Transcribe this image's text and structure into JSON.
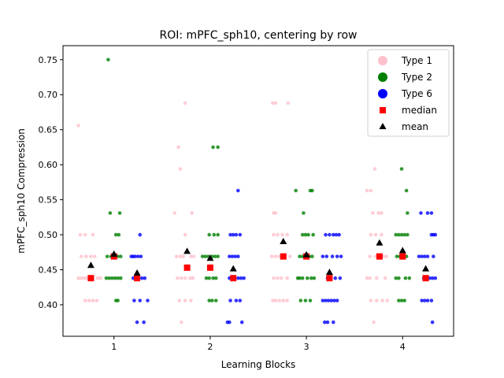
{
  "chart_data": {
    "type": "scatter",
    "title": "ROI: mPFC_sph10, centering by row",
    "xlabel": "Learning Blocks",
    "ylabel": "mPFC_sph10 Compression",
    "xlim": [
      0.47,
      4.53
    ],
    "ylim": [
      0.355,
      0.77
    ],
    "x_ticks": [
      1,
      2,
      3,
      4
    ],
    "x_tick_labels": [
      "1",
      "2",
      "3",
      "4"
    ],
    "y_ticks": [
      0.4,
      0.45,
      0.5,
      0.55,
      0.6,
      0.65,
      0.7,
      0.75
    ],
    "y_tick_labels": [
      "0.40",
      "0.45",
      "0.50",
      "0.55",
      "0.60",
      "0.65",
      "0.70",
      "0.75"
    ],
    "grid": false,
    "legend_position": "top-right",
    "legend": [
      {
        "label": "Type 1",
        "color": "#ffc0cb",
        "marker": "circle"
      },
      {
        "label": "Type 2",
        "color": "#008000",
        "marker": "circle"
      },
      {
        "label": "Type 6",
        "color": "#0000ff",
        "marker": "circle"
      },
      {
        "label": "median",
        "color": "#ff0000",
        "marker": "square"
      },
      {
        "label": "mean",
        "color": "#000000",
        "marker": "triangle"
      }
    ],
    "series": [
      {
        "name": "Type 1",
        "color": "#ffc0cb",
        "points": [
          [
            0.63,
            0.656
          ],
          [
            0.65,
            0.5
          ],
          [
            0.7,
            0.5
          ],
          [
            0.78,
            0.5
          ],
          [
            0.66,
            0.469
          ],
          [
            0.71,
            0.469
          ],
          [
            0.76,
            0.469
          ],
          [
            0.8,
            0.469
          ],
          [
            0.63,
            0.438
          ],
          [
            0.66,
            0.438
          ],
          [
            0.69,
            0.438
          ],
          [
            0.72,
            0.438
          ],
          [
            0.83,
            0.438
          ],
          [
            0.86,
            0.438
          ],
          [
            0.7,
            0.406
          ],
          [
            0.74,
            0.406
          ],
          [
            0.78,
            0.406
          ],
          [
            0.82,
            0.406
          ],
          [
            1.67,
            0.625
          ],
          [
            1.69,
            0.594
          ],
          [
            1.74,
            0.688
          ],
          [
            1.63,
            0.531
          ],
          [
            1.81,
            0.531
          ],
          [
            1.74,
            0.5
          ],
          [
            1.65,
            0.469
          ],
          [
            1.69,
            0.469
          ],
          [
            1.72,
            0.469
          ],
          [
            1.8,
            0.469
          ],
          [
            1.83,
            0.469
          ],
          [
            1.66,
            0.438
          ],
          [
            1.7,
            0.438
          ],
          [
            1.74,
            0.438
          ],
          [
            1.79,
            0.438
          ],
          [
            1.82,
            0.438
          ],
          [
            1.68,
            0.406
          ],
          [
            1.74,
            0.406
          ],
          [
            1.8,
            0.406
          ],
          [
            1.7,
            0.375
          ],
          [
            2.65,
            0.688
          ],
          [
            2.68,
            0.688
          ],
          [
            2.81,
            0.688
          ],
          [
            2.66,
            0.531
          ],
          [
            2.68,
            0.531
          ],
          [
            2.66,
            0.5
          ],
          [
            2.7,
            0.5
          ],
          [
            2.75,
            0.5
          ],
          [
            2.8,
            0.5
          ],
          [
            2.64,
            0.469
          ],
          [
            2.68,
            0.469
          ],
          [
            2.72,
            0.469
          ],
          [
            2.77,
            0.469
          ],
          [
            2.83,
            0.469
          ],
          [
            2.66,
            0.438
          ],
          [
            2.7,
            0.438
          ],
          [
            2.74,
            0.438
          ],
          [
            2.8,
            0.438
          ],
          [
            2.65,
            0.406
          ],
          [
            2.68,
            0.406
          ],
          [
            2.72,
            0.406
          ],
          [
            2.76,
            0.406
          ],
          [
            2.8,
            0.406
          ],
          [
            3.71,
            0.594
          ],
          [
            3.63,
            0.563
          ],
          [
            3.67,
            0.563
          ],
          [
            3.69,
            0.531
          ],
          [
            3.75,
            0.531
          ],
          [
            3.78,
            0.531
          ],
          [
            3.67,
            0.5
          ],
          [
            3.72,
            0.5
          ],
          [
            3.78,
            0.5
          ],
          [
            3.66,
            0.469
          ],
          [
            3.72,
            0.469
          ],
          [
            3.77,
            0.469
          ],
          [
            3.8,
            0.469
          ],
          [
            3.83,
            0.469
          ],
          [
            3.63,
            0.438
          ],
          [
            3.66,
            0.438
          ],
          [
            3.73,
            0.438
          ],
          [
            3.82,
            0.438
          ],
          [
            3.67,
            0.406
          ],
          [
            3.73,
            0.406
          ],
          [
            3.79,
            0.406
          ],
          [
            3.84,
            0.406
          ],
          [
            3.7,
            0.375
          ]
        ]
      },
      {
        "name": "Type 2",
        "color": "#008000",
        "points": [
          [
            0.94,
            0.75
          ],
          [
            0.96,
            0.531
          ],
          [
            1.06,
            0.531
          ],
          [
            1.02,
            0.5
          ],
          [
            1.05,
            0.5
          ],
          [
            0.93,
            0.469
          ],
          [
            0.97,
            0.469
          ],
          [
            1.01,
            0.469
          ],
          [
            1.04,
            0.469
          ],
          [
            1.07,
            0.469
          ],
          [
            0.92,
            0.438
          ],
          [
            0.95,
            0.438
          ],
          [
            0.98,
            0.438
          ],
          [
            1.01,
            0.438
          ],
          [
            1.04,
            0.438
          ],
          [
            1.07,
            0.438
          ],
          [
            1.02,
            0.406
          ],
          [
            1.04,
            0.406
          ],
          [
            2.03,
            0.625
          ],
          [
            2.08,
            0.625
          ],
          [
            1.99,
            0.5
          ],
          [
            2.04,
            0.5
          ],
          [
            2.08,
            0.5
          ],
          [
            1.92,
            0.469
          ],
          [
            1.95,
            0.469
          ],
          [
            1.98,
            0.469
          ],
          [
            2.02,
            0.469
          ],
          [
            2.05,
            0.469
          ],
          [
            2.08,
            0.469
          ],
          [
            1.96,
            0.438
          ],
          [
            1.99,
            0.438
          ],
          [
            2.03,
            0.438
          ],
          [
            2.06,
            0.438
          ],
          [
            1.99,
            0.406
          ],
          [
            2.02,
            0.406
          ],
          [
            2.06,
            0.406
          ],
          [
            2.89,
            0.563
          ],
          [
            3.04,
            0.563
          ],
          [
            3.06,
            0.563
          ],
          [
            2.97,
            0.531
          ],
          [
            2.96,
            0.5
          ],
          [
            2.99,
            0.5
          ],
          [
            3.02,
            0.5
          ],
          [
            3.07,
            0.5
          ],
          [
            2.93,
            0.469
          ],
          [
            2.96,
            0.469
          ],
          [
            2.99,
            0.469
          ],
          [
            3.03,
            0.469
          ],
          [
            3.06,
            0.469
          ],
          [
            2.91,
            0.438
          ],
          [
            2.93,
            0.438
          ],
          [
            2.96,
            0.438
          ],
          [
            3.01,
            0.438
          ],
          [
            3.05,
            0.438
          ],
          [
            3.08,
            0.438
          ],
          [
            2.94,
            0.406
          ],
          [
            2.99,
            0.406
          ],
          [
            3.04,
            0.406
          ],
          [
            3.99,
            0.594
          ],
          [
            4.04,
            0.563
          ],
          [
            4.05,
            0.531
          ],
          [
            3.93,
            0.5
          ],
          [
            3.96,
            0.5
          ],
          [
            3.99,
            0.5
          ],
          [
            4.02,
            0.5
          ],
          [
            4.05,
            0.5
          ],
          [
            3.94,
            0.469
          ],
          [
            3.97,
            0.469
          ],
          [
            4.01,
            0.469
          ],
          [
            4.04,
            0.469
          ],
          [
            3.93,
            0.438
          ],
          [
            3.96,
            0.438
          ],
          [
            4.03,
            0.438
          ],
          [
            4.07,
            0.438
          ],
          [
            3.96,
            0.406
          ],
          [
            3.99,
            0.406
          ],
          [
            4.02,
            0.406
          ]
        ]
      },
      {
        "name": "Type 6",
        "color": "#0000ff",
        "points": [
          [
            1.27,
            0.5
          ],
          [
            1.18,
            0.469
          ],
          [
            1.2,
            0.469
          ],
          [
            1.22,
            0.469
          ],
          [
            1.25,
            0.469
          ],
          [
            1.28,
            0.469
          ],
          [
            1.2,
            0.438
          ],
          [
            1.24,
            0.438
          ],
          [
            1.29,
            0.438
          ],
          [
            1.32,
            0.438
          ],
          [
            1.21,
            0.406
          ],
          [
            1.27,
            0.406
          ],
          [
            1.35,
            0.406
          ],
          [
            1.24,
            0.375
          ],
          [
            1.31,
            0.375
          ],
          [
            2.29,
            0.563
          ],
          [
            2.21,
            0.5
          ],
          [
            2.24,
            0.5
          ],
          [
            2.27,
            0.5
          ],
          [
            2.31,
            0.5
          ],
          [
            2.2,
            0.469
          ],
          [
            2.23,
            0.469
          ],
          [
            2.26,
            0.469
          ],
          [
            2.29,
            0.469
          ],
          [
            2.2,
            0.438
          ],
          [
            2.24,
            0.438
          ],
          [
            2.29,
            0.438
          ],
          [
            2.32,
            0.438
          ],
          [
            2.35,
            0.438
          ],
          [
            2.21,
            0.406
          ],
          [
            2.27,
            0.406
          ],
          [
            2.31,
            0.406
          ],
          [
            2.18,
            0.375
          ],
          [
            2.2,
            0.375
          ],
          [
            2.33,
            0.375
          ],
          [
            3.2,
            0.5
          ],
          [
            3.24,
            0.5
          ],
          [
            3.28,
            0.5
          ],
          [
            3.31,
            0.5
          ],
          [
            3.34,
            0.5
          ],
          [
            3.17,
            0.469
          ],
          [
            3.21,
            0.469
          ],
          [
            3.27,
            0.469
          ],
          [
            3.32,
            0.469
          ],
          [
            3.36,
            0.469
          ],
          [
            3.22,
            0.438
          ],
          [
            3.3,
            0.438
          ],
          [
            3.35,
            0.438
          ],
          [
            3.17,
            0.406
          ],
          [
            3.2,
            0.406
          ],
          [
            3.23,
            0.406
          ],
          [
            3.26,
            0.406
          ],
          [
            3.29,
            0.406
          ],
          [
            3.32,
            0.406
          ],
          [
            3.19,
            0.375
          ],
          [
            3.22,
            0.375
          ],
          [
            3.28,
            0.375
          ],
          [
            4.19,
            0.531
          ],
          [
            4.26,
            0.531
          ],
          [
            4.3,
            0.531
          ],
          [
            4.3,
            0.5
          ],
          [
            4.32,
            0.5
          ],
          [
            4.34,
            0.5
          ],
          [
            4.17,
            0.469
          ],
          [
            4.2,
            0.469
          ],
          [
            4.23,
            0.469
          ],
          [
            4.26,
            0.469
          ],
          [
            4.32,
            0.469
          ],
          [
            4.22,
            0.438
          ],
          [
            4.28,
            0.438
          ],
          [
            4.31,
            0.438
          ],
          [
            4.34,
            0.438
          ],
          [
            4.2,
            0.406
          ],
          [
            4.23,
            0.406
          ],
          [
            4.26,
            0.406
          ],
          [
            4.3,
            0.406
          ],
          [
            4.31,
            0.375
          ]
        ]
      }
    ],
    "median": {
      "name": "median",
      "color": "#ff0000",
      "points": [
        [
          0.76,
          0.438
        ],
        [
          1.0,
          0.469
        ],
        [
          1.24,
          0.438
        ],
        [
          1.76,
          0.453
        ],
        [
          2.0,
          0.453
        ],
        [
          2.24,
          0.438
        ],
        [
          2.76,
          0.469
        ],
        [
          3.0,
          0.469
        ],
        [
          3.24,
          0.438
        ],
        [
          3.76,
          0.469
        ],
        [
          4.0,
          0.469
        ],
        [
          4.24,
          0.438
        ]
      ]
    },
    "mean": {
      "name": "mean",
      "color": "#000000",
      "points": [
        [
          0.76,
          0.456
        ],
        [
          1.0,
          0.472
        ],
        [
          1.24,
          0.445
        ],
        [
          1.76,
          0.476
        ],
        [
          2.0,
          0.466
        ],
        [
          2.24,
          0.451
        ],
        [
          2.76,
          0.49
        ],
        [
          3.0,
          0.471
        ],
        [
          3.24,
          0.446
        ],
        [
          3.76,
          0.488
        ],
        [
          4.0,
          0.477
        ],
        [
          4.24,
          0.451
        ]
      ]
    }
  }
}
